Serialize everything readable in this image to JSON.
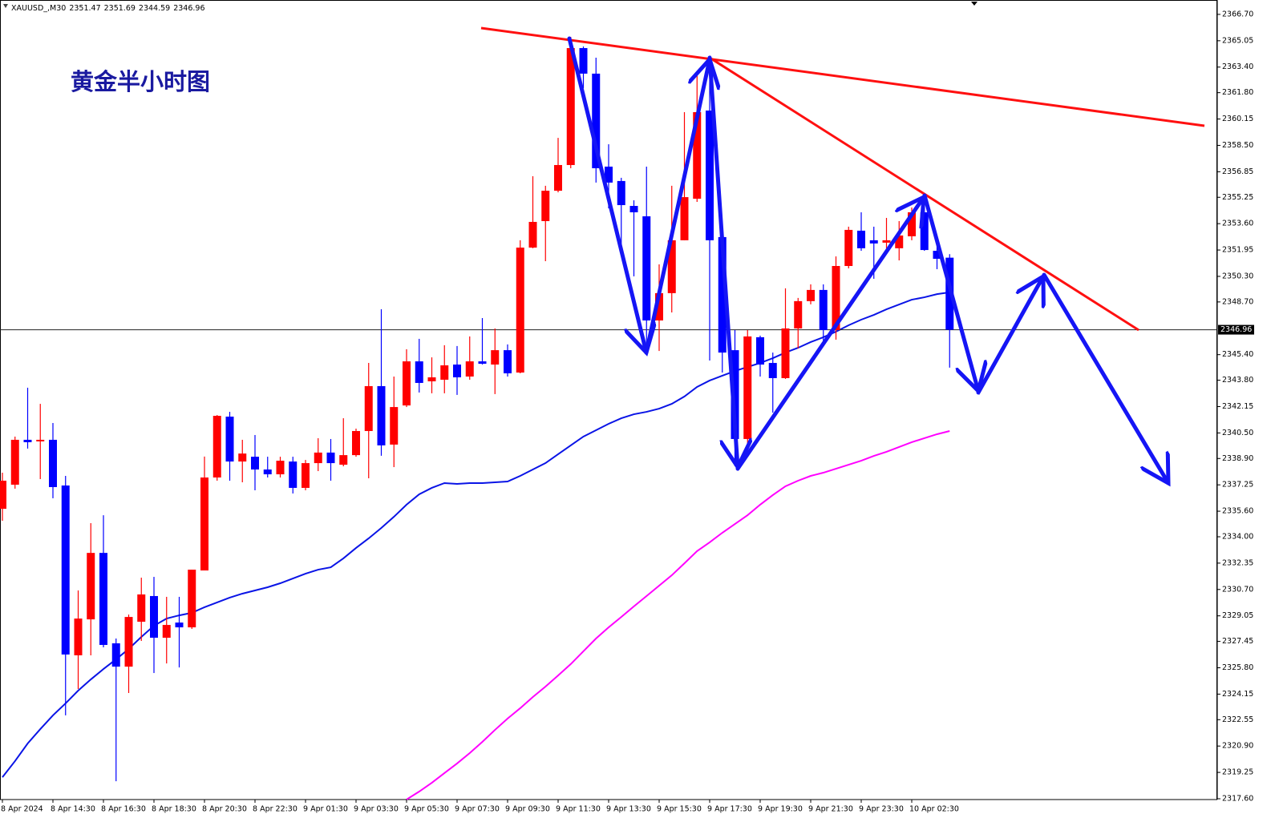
{
  "chart_data": {
    "type": "candlestick",
    "symbol": "XAUUSD_,M30",
    "annotation": "黄金半小时图",
    "categories": [
      "8 Apr 2024",
      null,
      null,
      null,
      "8 Apr 14:30",
      null,
      null,
      null,
      "8 Apr 16:30",
      null,
      null,
      null,
      "8 Apr 18:30",
      null,
      null,
      null,
      "8 Apr 20:30",
      null,
      null,
      null,
      "8 Apr 22:30",
      null,
      null,
      null,
      "9 Apr 01:30",
      null,
      null,
      null,
      "9 Apr 03:30",
      null,
      null,
      null,
      "9 Apr 05:30",
      null,
      null,
      null,
      "9 Apr 07:30",
      null,
      null,
      null,
      "9 Apr 09:30",
      null,
      null,
      null,
      "9 Apr 11:30",
      null,
      null,
      null,
      "9 Apr 13:30",
      null,
      null,
      null,
      "9 Apr 15:30",
      null,
      null,
      null,
      "9 Apr 17:30",
      null,
      null,
      null,
      "9 Apr 19:30",
      null,
      null,
      null,
      "9 Apr 21:30",
      null,
      null,
      null,
      "9 Apr 23:30",
      null,
      null,
      null,
      "10 Apr 02:30",
      null,
      null,
      null
    ],
    "open": [
      2335.75,
      2337.26,
      2340.07,
      2339.97,
      2340.07,
      2337.21,
      2326.58,
      2328.83,
      2332.99,
      2327.33,
      2325.87,
      2328.68,
      2330.29,
      2327.68,
      2328.63,
      2328.33,
      2331.89,
      2337.71,
      2341.52,
      2338.71,
      2339.01,
      2338.21,
      2337.91,
      2338.71,
      2337.06,
      2338.61,
      2339.27,
      2338.51,
      2339.11,
      2340.62,
      2343.43,
      2339.77,
      2342.22,
      2344.98,
      2343.73,
      2343.83,
      2344.78,
      2344.03,
      2344.98,
      2344.78,
      2345.68,
      2344.28,
      2352.1,
      2353.76,
      2355.66,
      2357.27,
      2364.59,
      2362.99,
      2357.17,
      2356.27,
      2354.71,
      2354.06,
      2347.54,
      2349.25,
      2352.56,
      2355.16,
      2360.68,
      2352.76,
      2345.68,
      2340.12,
      2346.49,
      2344.88,
      2343.93,
      2347.04,
      2348.75,
      2349.45,
      2346.94,
      2350.95,
      2353.16,
      2352.56,
      2352.41,
      2352.06,
      2352.81,
      2354.31,
      2351.9,
      2351.47
    ],
    "high": [
      2338.01,
      2340.27,
      2343.33,
      2342.32,
      2341.12,
      2337.81,
      2330.64,
      2334.85,
      2335.35,
      2327.63,
      2329.13,
      2331.44,
      2331.49,
      2330.24,
      2330.24,
      2331.94,
      2339.02,
      2341.62,
      2341.82,
      2340.07,
      2340.37,
      2339.01,
      2339.01,
      2339.01,
      2338.81,
      2340.17,
      2340.12,
      2341.42,
      2340.77,
      2344.88,
      2348.24,
      2344.03,
      2345.74,
      2346.39,
      2345.23,
      2345.99,
      2345.94,
      2346.54,
      2347.69,
      2347.04,
      2346.04,
      2352.56,
      2356.57,
      2355.97,
      2358.97,
      2365.29,
      2364.69,
      2363.99,
      2358.57,
      2356.47,
      2355.06,
      2357.17,
      2351.05,
      2355.97,
      2360.58,
      2362.94,
      2362.59,
      2352.91,
      2346.94,
      2346.94,
      2346.59,
      2345.53,
      2349.55,
      2348.95,
      2349.8,
      2349.8,
      2351.55,
      2353.41,
      2354.31,
      2353.41,
      2353.96,
      2353.76,
      2354.61,
      2355.31,
      2352.56,
      2351.69
    ],
    "low": [
      2335.0,
      2337.01,
      2339.52,
      2337.61,
      2336.41,
      2322.82,
      2324.47,
      2326.58,
      2327.08,
      2318.7,
      2324.22,
      2327.48,
      2325.47,
      2326.07,
      2325.82,
      2328.23,
      2331.89,
      2337.51,
      2337.51,
      2337.41,
      2336.91,
      2337.71,
      2337.71,
      2336.71,
      2336.91,
      2338.11,
      2337.51,
      2338.41,
      2339.01,
      2337.66,
      2339.07,
      2338.36,
      2342.12,
      2343.03,
      2342.98,
      2342.98,
      2342.88,
      2343.83,
      2344.78,
      2342.93,
      2344.03,
      2344.23,
      2352.06,
      2351.25,
      2355.56,
      2357.07,
      2362.08,
      2356.17,
      2354.56,
      2352.31,
      2350.3,
      2345.53,
      2345.63,
      2348.04,
      2352.56,
      2354.96,
      2345.03,
      2344.28,
      2338.41,
      2339.52,
      2344.03,
      2341.77,
      2343.88,
      2345.79,
      2348.55,
      2346.04,
      2346.34,
      2350.8,
      2351.9,
      2350.15,
      2352.06,
      2351.3,
      2352.56,
      2351.9,
      2350.75,
      2344.59
    ],
    "close": [
      2337.51,
      2340.07,
      2339.92,
      2340.07,
      2337.11,
      2326.63,
      2328.88,
      2332.99,
      2327.23,
      2325.87,
      2328.98,
      2330.39,
      2327.68,
      2328.48,
      2328.33,
      2331.94,
      2337.71,
      2341.57,
      2338.71,
      2339.21,
      2338.21,
      2337.91,
      2338.76,
      2337.06,
      2338.61,
      2339.27,
      2338.61,
      2339.11,
      2340.62,
      2343.43,
      2339.72,
      2342.12,
      2344.98,
      2343.63,
      2343.98,
      2344.73,
      2343.98,
      2344.98,
      2344.83,
      2345.68,
      2344.23,
      2352.1,
      2353.71,
      2355.66,
      2357.27,
      2364.59,
      2362.99,
      2357.07,
      2356.17,
      2354.76,
      2354.31,
      2347.54,
      2349.25,
      2352.56,
      2355.26,
      2360.58,
      2352.56,
      2345.53,
      2340.12,
      2346.54,
      2344.78,
      2343.93,
      2347.04,
      2348.75,
      2349.45,
      2346.94,
      2350.95,
      2353.21,
      2352.06,
      2352.36,
      2352.56,
      2352.86,
      2354.31,
      2351.95,
      2351.4,
      2346.96
    ],
    "up_color": "#ff0000",
    "down_color": "#0000ff",
    "overlays": [
      {
        "color": "#0a14e6",
        "values": [
          2318.95,
          2319.96,
          2321.06,
          2321.96,
          2322.82,
          2323.57,
          2324.37,
          2325.07,
          2325.72,
          2326.33,
          2326.98,
          2327.73,
          2328.43,
          2328.88,
          2329.08,
          2329.24,
          2329.59,
          2329.89,
          2330.19,
          2330.44,
          2330.64,
          2330.84,
          2331.09,
          2331.39,
          2331.69,
          2331.94,
          2332.09,
          2332.65,
          2333.3,
          2333.9,
          2334.55,
          2335.25,
          2336.01,
          2336.66,
          2337.06,
          2337.36,
          2337.31,
          2337.36,
          2337.36,
          2337.41,
          2337.46,
          2337.81,
          2338.21,
          2338.61,
          2339.17,
          2339.72,
          2340.27,
          2340.67,
          2341.07,
          2341.42,
          2341.67,
          2341.82,
          2342.02,
          2342.32,
          2342.78,
          2343.38,
          2343.78,
          2344.08,
          2344.38,
          2344.63,
          2344.88,
          2345.18,
          2345.53,
          2345.83,
          2346.19,
          2346.49,
          2346.84,
          2347.24,
          2347.59,
          2347.89,
          2348.24,
          2348.54,
          2348.84,
          2348.99,
          2349.19,
          2349.3
        ]
      },
      {
        "color": "#ff00ff",
        "values": [
          null,
          null,
          null,
          null,
          null,
          null,
          null,
          null,
          null,
          null,
          null,
          null,
          null,
          null,
          null,
          null,
          null,
          null,
          null,
          null,
          null,
          null,
          null,
          null,
          null,
          null,
          null,
          null,
          null,
          null,
          null,
          null,
          2317.55,
          2318.05,
          2318.6,
          2319.21,
          2319.81,
          2320.46,
          2321.16,
          2321.91,
          2322.62,
          2323.27,
          2323.97,
          2324.62,
          2325.32,
          2326.03,
          2326.83,
          2327.63,
          2328.33,
          2328.98,
          2329.64,
          2330.29,
          2330.94,
          2331.59,
          2332.34,
          2333.1,
          2333.65,
          2334.25,
          2334.8,
          2335.35,
          2336.01,
          2336.61,
          2337.16,
          2337.51,
          2337.81,
          2338.01,
          2338.26,
          2338.51,
          2338.76,
          2339.06,
          2339.32,
          2339.62,
          2339.92,
          2340.17,
          2340.42,
          2340.62
        ]
      }
    ],
    "last_price": 2346.96,
    "ylim": [
      2317.55,
      2367.6
    ],
    "yticks": [
      {
        "value": 2366.7,
        "label": "2366.70"
      },
      2365.05,
      {
        "value": 2363.4,
        "label": "2363.40"
      },
      {
        "value": 2361.8,
        "label": "2361.80"
      },
      2360.15,
      {
        "value": 2358.5,
        "label": "2358.50"
      },
      2356.85,
      2355.25,
      {
        "value": 2353.6,
        "label": "2353.60"
      },
      2351.95,
      {
        "value": 2350.3,
        "label": "2350.30"
      },
      {
        "value": 2348.7,
        "label": "2348.70"
      },
      {
        "value": 2345.4,
        "label": "2345.40"
      },
      {
        "value": 2343.8,
        "label": "2343.80"
      },
      2342.15,
      {
        "value": 2340.5,
        "label": "2340.50"
      },
      {
        "value": 2338.9,
        "label": "2338.90"
      },
      2337.25,
      {
        "value": 2335.6,
        "label": "2335.60"
      },
      {
        "value": 2334,
        "label": "2334.00"
      },
      2332.35,
      {
        "value": 2330.7,
        "label": "2330.70"
      },
      2329.05,
      2327.45,
      {
        "value": 2325.8,
        "label": "2325.80"
      },
      2324.15,
      2322.55,
      {
        "value": 2320.9,
        "label": "2320.90"
      },
      2319.25,
      {
        "value": 2317.6,
        "label": "2317.60"
      }
    ],
    "grid": false
  }
}
